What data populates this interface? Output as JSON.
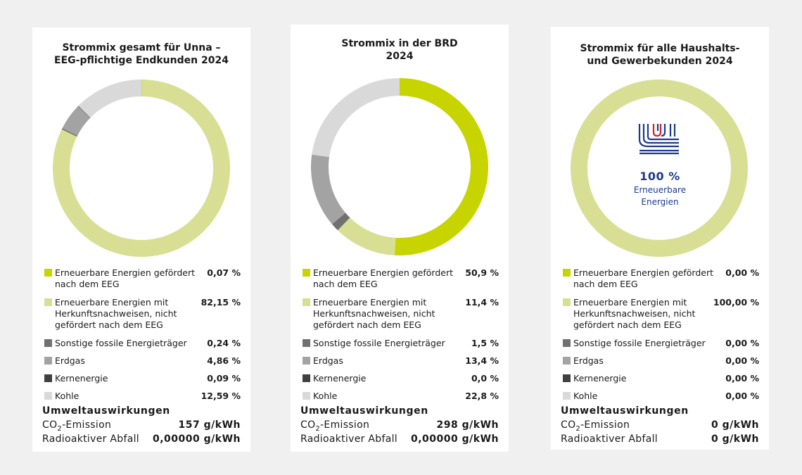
{
  "colors": {
    "renewable_eeg": "#c8d400",
    "renewable_hkn": "#d8df94",
    "other_fossil": "#707070",
    "natural_gas": "#a3a3a3",
    "nuclear": "#404040",
    "coal": "#d9d9d9",
    "logo_blue": "#1d3a8c",
    "logo_red": "#d2232a"
  },
  "legend_keys": [
    "renewable_eeg",
    "renewable_hkn",
    "other_fossil",
    "natural_gas",
    "nuclear",
    "coal"
  ],
  "impact_heading": "Umweltauswirkungen",
  "co2_label_prefix": "CO",
  "co2_label_sub": "2",
  "co2_label_suffix": "-Emission",
  "waste_label": "Radioaktiver Abfall",
  "chart_data": [
    {
      "type": "pie",
      "title": "Strommix gesamt für Unna –\nEEG-pflichtige Endkunden 2024",
      "categories": [
        "Erneuerbare Energien gefördert\nnach dem EEG",
        "Erneuerbare Energien mit\nHerkunftsnachweisen, nicht\ngefördert nach dem EEG",
        "Sonstige fossile Energieträger",
        "Erdgas",
        "Kernenergie",
        "Kohle"
      ],
      "values": [
        0.07,
        82.15,
        0.24,
        4.86,
        0.09,
        12.59
      ],
      "value_labels": [
        "0,07 %",
        "82,15 %",
        "0,24 %",
        "4,86 %",
        "0,09 %",
        "12,59 %"
      ],
      "co2_value": "157 g/kWh",
      "waste_value": "0,00000 g/kWh"
    },
    {
      "type": "pie",
      "title": "Strommix in der BRD\n2024",
      "categories": [
        "Erneuerbare Energien gefördert\nnach dem EEG",
        "Erneuerbare Energien mit\nHerkunftsnachweisen, nicht\ngefördert nach dem EEG",
        "Sonstige fossile Energieträger",
        "Erdgas",
        "Kernenergie",
        "Kohle"
      ],
      "values": [
        50.9,
        11.4,
        1.5,
        13.4,
        0.0,
        22.8
      ],
      "value_labels": [
        "50,9 %",
        "11,4 %",
        "1,5 %",
        "13,4 %",
        "0,0 %",
        "22,8 %"
      ],
      "co2_value": "298 g/kWh",
      "waste_value": "0,00000 g/kWh"
    },
    {
      "type": "pie",
      "title": "Strommix für alle Haushalts-\nund Gewerbekunden 2024",
      "categories": [
        "Erneuerbare Energien gefördert\nnach dem EEG",
        "Erneuerbare Energien mit\nHerkunftsnachweisen, nicht\ngefördert nach dem EEG",
        "Sonstige fossile Energieträger",
        "Erdgas",
        "Kernenergie",
        "Kohle"
      ],
      "values": [
        0.0,
        100.0,
        0.0,
        0.0,
        0.0,
        0.0
      ],
      "value_labels": [
        "0,00 %",
        "100,00 %",
        "0,00 %",
        "0,00 %",
        "0,00 %",
        "0,00 %"
      ],
      "co2_value": "0 g/kWh",
      "waste_value": "0 g/kWh",
      "center_logo": {
        "icon": "unna-logo-icon",
        "percent": "100 %",
        "text": "Erneuerbare\nEnergien"
      }
    }
  ]
}
